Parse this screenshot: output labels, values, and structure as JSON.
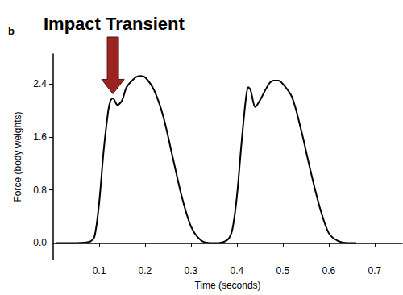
{
  "chart_data": {
    "type": "line",
    "title": "b",
    "x_label": "Time (seconds)",
    "y_label": "Force (body weights)",
    "annotations": [
      {
        "text": "Impact Transient",
        "x": 0.13,
        "y": 2.2
      }
    ],
    "x": [
      0.007,
      0.05,
      0.08,
      0.09,
      0.1,
      0.11,
      0.12,
      0.125,
      0.13,
      0.14,
      0.15,
      0.16,
      0.18,
      0.19,
      0.2,
      0.22,
      0.24,
      0.26,
      0.28,
      0.3,
      0.32,
      0.34,
      0.36,
      0.38,
      0.39,
      0.4,
      0.41,
      0.42,
      0.425,
      0.43,
      0.44,
      0.45,
      0.47,
      0.48,
      0.49,
      0.5,
      0.52,
      0.54,
      0.56,
      0.58,
      0.6,
      0.62,
      0.64,
      0.66
    ],
    "values": [
      0,
      0,
      0.02,
      0.1,
      0.6,
      1.4,
      2.0,
      2.15,
      2.18,
      2.08,
      2.15,
      2.35,
      2.5,
      2.52,
      2.5,
      2.3,
      1.9,
      1.3,
      0.7,
      0.25,
      0.05,
      0,
      0,
      0.05,
      0.2,
      0.7,
      1.5,
      2.2,
      2.35,
      2.3,
      2.05,
      2.15,
      2.4,
      2.45,
      2.45,
      2.4,
      2.2,
      1.7,
      1.1,
      0.55,
      0.15,
      0.03,
      0,
      0
    ],
    "color": "#000000",
    "xlim": [
      0,
      0.76
    ],
    "xticks": [
      0.1,
      0.2,
      0.3,
      0.4,
      0.5,
      0.6,
      0.7
    ],
    "ylim": [
      -0.25,
      2.85
    ],
    "yticks": [
      {
        "value": 0,
        "label": "0.0"
      },
      0.8,
      1.6,
      2.4
    ],
    "grid": false
  }
}
